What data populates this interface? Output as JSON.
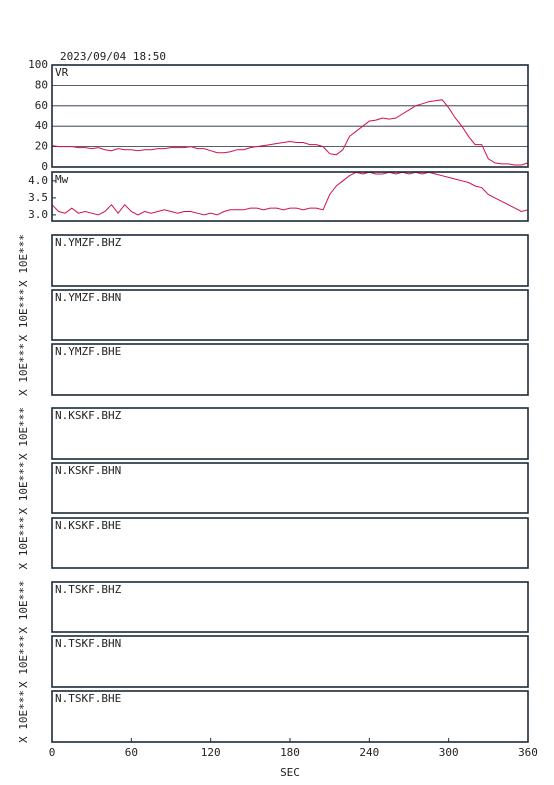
{
  "chart_data": [
    {
      "type": "line",
      "title": "2023/09/04 18:50",
      "label": "VR",
      "ylim": [
        0,
        100
      ],
      "yticks": [
        0,
        20,
        40,
        60,
        80,
        100
      ],
      "grid": true,
      "series": [
        {
          "name": "VR",
          "color": "#d0104c",
          "x": [
            0,
            5,
            10,
            15,
            20,
            25,
            30,
            35,
            40,
            45,
            50,
            55,
            60,
            65,
            70,
            75,
            80,
            85,
            90,
            95,
            100,
            105,
            110,
            115,
            120,
            125,
            130,
            135,
            140,
            145,
            150,
            155,
            160,
            165,
            170,
            175,
            180,
            185,
            190,
            195,
            200,
            205,
            210,
            215,
            220,
            225,
            230,
            235,
            240,
            245,
            250,
            255,
            260,
            265,
            270,
            275,
            280,
            285,
            290,
            295,
            300,
            305,
            310,
            315,
            320,
            325,
            330,
            335,
            340,
            345,
            350,
            355,
            360
          ],
          "values": [
            21,
            20,
            20,
            20,
            19,
            19,
            18,
            19,
            17,
            16,
            18,
            17,
            17,
            16,
            17,
            17,
            18,
            18,
            19,
            19,
            19,
            20,
            18,
            18,
            16,
            14,
            14,
            15,
            17,
            17,
            19,
            20,
            21,
            22,
            23,
            24,
            25,
            24,
            24,
            22,
            22,
            20,
            13,
            12,
            17,
            30,
            35,
            40,
            45,
            46,
            48,
            47,
            48,
            52,
            56,
            60,
            62,
            64,
            65,
            66,
            58,
            48,
            40,
            30,
            22,
            22,
            8,
            4,
            3,
            3,
            2,
            2,
            4
          ]
        }
      ]
    },
    {
      "type": "line",
      "label": "Mw",
      "ylim": [
        2.82,
        4.26
      ],
      "yticks": [
        {
          "value": 3,
          "label": "3.0"
        },
        {
          "value": 3.5,
          "label": "3.5"
        },
        {
          "value": 4,
          "label": "4.0"
        }
      ],
      "grid": false,
      "series": [
        {
          "name": "Mw",
          "color": "#d0104c",
          "x": [
            0,
            5,
            10,
            15,
            20,
            25,
            30,
            35,
            40,
            45,
            50,
            55,
            60,
            65,
            70,
            75,
            80,
            85,
            90,
            95,
            100,
            105,
            110,
            115,
            120,
            125,
            130,
            135,
            140,
            145,
            150,
            155,
            160,
            165,
            170,
            175,
            180,
            185,
            190,
            195,
            200,
            205,
            210,
            215,
            220,
            225,
            230,
            235,
            240,
            245,
            250,
            255,
            260,
            265,
            270,
            275,
            280,
            285,
            290,
            295,
            300,
            305,
            310,
            315,
            320,
            325,
            330,
            335,
            340,
            345,
            350,
            355,
            360
          ],
          "values": [
            3.3,
            3.1,
            3.05,
            3.2,
            3.05,
            3.1,
            3.05,
            3.0,
            3.1,
            3.3,
            3.05,
            3.3,
            3.1,
            3.0,
            3.1,
            3.05,
            3.1,
            3.15,
            3.1,
            3.05,
            3.1,
            3.1,
            3.05,
            3.0,
            3.05,
            3.0,
            3.1,
            3.15,
            3.15,
            3.15,
            3.2,
            3.2,
            3.15,
            3.2,
            3.2,
            3.15,
            3.2,
            3.2,
            3.15,
            3.2,
            3.2,
            3.15,
            3.6,
            3.85,
            4.0,
            4.15,
            4.25,
            4.2,
            4.25,
            4.2,
            4.2,
            4.25,
            4.2,
            4.25,
            4.2,
            4.25,
            4.2,
            4.25,
            4.2,
            4.15,
            4.1,
            4.05,
            4.0,
            3.95,
            3.85,
            3.8,
            3.6,
            3.5,
            3.4,
            3.3,
            3.2,
            3.1,
            3.15
          ]
        }
      ]
    },
    {
      "type": "line",
      "label": "N.YMZF.BHZ",
      "ylabel": "X 10E***"
    },
    {
      "type": "line",
      "label": "N.YMZF.BHN",
      "ylabel": "X 10E***"
    },
    {
      "type": "line",
      "label": "N.YMZF.BHE",
      "ylabel": "X 10E***"
    },
    {
      "type": "line",
      "label": "N.KSKF.BHZ",
      "ylabel": "X 10E***"
    },
    {
      "type": "line",
      "label": "N.KSKF.BHN",
      "ylabel": "X 10E***"
    },
    {
      "type": "line",
      "label": "N.KSKF.BHE",
      "ylabel": "X 10E***"
    },
    {
      "type": "line",
      "label": "N.TSKF.BHZ",
      "ylabel": "X 10E***"
    },
    {
      "type": "line",
      "label": "N.TSKF.BHN",
      "ylabel": "X 10E***"
    },
    {
      "type": "line",
      "label": "N.TSKF.BHE",
      "ylabel": "X 10E***",
      "xlim": [
        0,
        360
      ],
      "xticks": [
        0,
        60,
        120,
        180,
        240,
        300,
        360
      ],
      "xlabel": "SEC"
    }
  ]
}
